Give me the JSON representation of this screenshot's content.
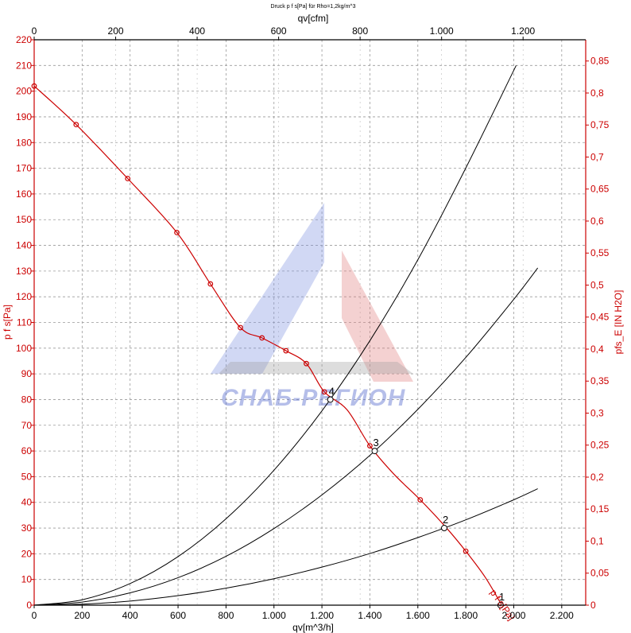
{
  "watermark": {
    "text": "СНАБ-РЕГИОН"
  },
  "chart_data": {
    "type": "line",
    "title": "Druck p f s[Pa] für Rho=1,2kg/m^3",
    "xlabel": "qv[m^3/h]",
    "x2label": "qv[cfm]",
    "ylabel": "p f s[Pa]",
    "y2label": "pfs_E [IN H2O]",
    "xlim": [
      0,
      2300
    ],
    "ylim": [
      0,
      220
    ],
    "x2lim": [
      0,
      1353.7
    ],
    "y2lim": [
      0,
      0.8832
    ],
    "x_ticks": [
      0,
      200,
      400,
      600,
      800,
      1000,
      1200,
      1400,
      1600,
      1800,
      2000,
      2200
    ],
    "x_tick_labels": [
      "0",
      "200",
      "400",
      "600",
      "800",
      "1.000",
      "1.200",
      "1.400",
      "1.600",
      "1.800",
      "2.000",
      "2.200"
    ],
    "x2_ticks": [
      0,
      200,
      400,
      600,
      800,
      1000,
      1200
    ],
    "x2_tick_labels": [
      "0",
      "200",
      "400",
      "600",
      "800",
      "1.000",
      "1.200"
    ],
    "y_ticks": [
      0,
      10,
      20,
      30,
      40,
      50,
      60,
      70,
      80,
      90,
      100,
      110,
      120,
      130,
      140,
      150,
      160,
      170,
      180,
      190,
      200,
      210,
      220
    ],
    "y_tick_labels": [
      "0",
      "10",
      "20",
      "30",
      "40",
      "50",
      "60",
      "70",
      "80",
      "90",
      "100",
      "110",
      "120",
      "130",
      "140",
      "150",
      "160",
      "170",
      "180",
      "190",
      "200",
      "210",
      "220"
    ],
    "y2_ticks": [
      0,
      0.05,
      0.1,
      0.15,
      0.2,
      0.25,
      0.3,
      0.35,
      0.4,
      0.45,
      0.5,
      0.55,
      0.6,
      0.65,
      0.7,
      0.75,
      0.8,
      0.85
    ],
    "y2_tick_labels": [
      "0",
      "0,05",
      "0,1",
      "0,15",
      "0,2",
      "0,25",
      "0,3",
      "0,35",
      "0,4",
      "0,45",
      "0,5",
      "0,55",
      "0,6",
      "0,65",
      "0,7",
      "0,75",
      "0,8",
      "0,85"
    ],
    "grid": true,
    "series": [
      {
        "name": "p f s[Pa]",
        "color": "#cc0000",
        "role": "fan_curve",
        "x": [
          0,
          175,
          390,
          595,
          735,
          860,
          950,
          1050,
          1135,
          1210,
          1305,
          1400,
          1500,
          1610,
          1720,
          1800,
          1880,
          1950
        ],
        "y": [
          202,
          187,
          166,
          145,
          125,
          108,
          104,
          99,
          94,
          83,
          76,
          62,
          51,
          41,
          30,
          21,
          11,
          0
        ],
        "markers_x": [
          0,
          175,
          390,
          595,
          735,
          860,
          950,
          1050,
          1135,
          1210,
          1400,
          1610,
          1800
        ],
        "markers_y": [
          202,
          187,
          166,
          145,
          125,
          108,
          104,
          99,
          94,
          83,
          62,
          41,
          21
        ],
        "end_marker": [
          1945,
          0
        ]
      },
      {
        "role": "system_curve",
        "color": "#000000",
        "point_label": "4",
        "operating_point": [
          1235,
          80
        ],
        "x": [
          0,
          200,
          400,
          600,
          800,
          1000,
          1200,
          1400,
          1600,
          1800,
          2010
        ],
        "y": [
          0,
          2.1,
          8.4,
          18.9,
          33.6,
          52.5,
          75.6,
          102.9,
          134.4,
          170.1,
          210
        ]
      },
      {
        "role": "system_curve",
        "color": "#000000",
        "point_label": "3",
        "operating_point": [
          1420,
          60
        ],
        "x": [
          0,
          200,
          400,
          600,
          800,
          1000,
          1200,
          1400,
          1600,
          1800,
          2000,
          2100
        ],
        "y": [
          0,
          1.2,
          4.8,
          10.7,
          19.0,
          29.8,
          42.9,
          58.3,
          76.2,
          96.4,
          119.0,
          131.2
        ]
      },
      {
        "role": "system_curve",
        "color": "#000000",
        "point_label": "2",
        "operating_point": [
          1710,
          30
        ],
        "x": [
          0,
          200,
          400,
          600,
          800,
          1000,
          1200,
          1400,
          1600,
          1800,
          2000,
          2100
        ],
        "y": [
          0,
          0.4,
          1.6,
          3.7,
          6.6,
          10.3,
          14.8,
          20.1,
          26.3,
          33.2,
          41.0,
          45.3
        ]
      },
      {
        "role": "system_curve",
        "color": "#000000",
        "point_label": "1",
        "operating_point": [
          1945,
          0
        ]
      }
    ],
    "annotations": [
      {
        "text": "4",
        "x": 1235,
        "y": 80
      },
      {
        "text": "3",
        "x": 1420,
        "y": 60
      },
      {
        "text": "2",
        "x": 1710,
        "y": 30
      },
      {
        "text": "1",
        "x": 1945,
        "y": 0
      },
      {
        "text": "p f s[Pa]",
        "x": 1900,
        "y": 5
      }
    ]
  }
}
